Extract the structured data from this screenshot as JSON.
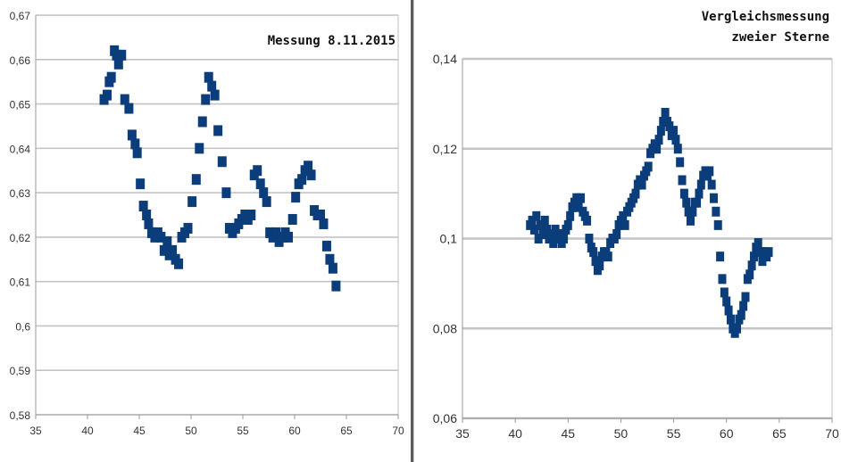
{
  "chart_data": [
    {
      "type": "scatter",
      "title": "Messung 8.11.2015",
      "xlim": [
        35,
        70
      ],
      "ylim": [
        0.58,
        0.67
      ],
      "x_ticks": [
        "35",
        "40",
        "45",
        "50",
        "55",
        "60",
        "65",
        "70"
      ],
      "y_ticks": [
        "0,58",
        "0,59",
        "0,6",
        "0,61",
        "0,62",
        "0,63",
        "0,64",
        "0,65",
        "0,66",
        "0,67"
      ],
      "grid": "horizontal",
      "color": "#0b3d7a",
      "series": [
        {
          "points": [
            [
              41.6,
              0.651
            ],
            [
              41.9,
              0.652
            ],
            [
              42.1,
              0.655
            ],
            [
              42.3,
              0.656
            ],
            [
              42.6,
              0.662
            ],
            [
              42.8,
              0.661
            ],
            [
              43.0,
              0.659
            ],
            [
              43.3,
              0.661
            ],
            [
              43.6,
              0.651
            ],
            [
              44.0,
              0.649
            ],
            [
              44.3,
              0.643
            ],
            [
              44.6,
              0.641
            ],
            [
              44.8,
              0.639
            ],
            [
              45.1,
              0.632
            ],
            [
              45.4,
              0.627
            ],
            [
              45.7,
              0.625
            ],
            [
              45.9,
              0.623
            ],
            [
              46.2,
              0.621
            ],
            [
              46.5,
              0.62
            ],
            [
              46.8,
              0.621
            ],
            [
              47.1,
              0.62
            ],
            [
              47.4,
              0.617
            ],
            [
              47.7,
              0.619
            ],
            [
              47.9,
              0.616
            ],
            [
              48.2,
              0.617
            ],
            [
              48.5,
              0.615
            ],
            [
              48.8,
              0.614
            ],
            [
              49.1,
              0.62
            ],
            [
              49.4,
              0.621
            ],
            [
              49.7,
              0.622
            ],
            [
              50.1,
              0.628
            ],
            [
              50.5,
              0.633
            ],
            [
              50.8,
              0.64
            ],
            [
              51.1,
              0.646
            ],
            [
              51.4,
              0.651
            ],
            [
              51.7,
              0.656
            ],
            [
              52.0,
              0.654
            ],
            [
              52.3,
              0.652
            ],
            [
              52.6,
              0.644
            ],
            [
              53.0,
              0.637
            ],
            [
              53.4,
              0.63
            ],
            [
              53.7,
              0.622
            ],
            [
              54.0,
              0.621
            ],
            [
              54.3,
              0.622
            ],
            [
              54.6,
              0.623
            ],
            [
              54.9,
              0.624
            ],
            [
              55.2,
              0.625
            ],
            [
              55.5,
              0.624
            ],
            [
              55.8,
              0.625
            ],
            [
              56.1,
              0.634
            ],
            [
              56.4,
              0.635
            ],
            [
              56.7,
              0.632
            ],
            [
              57.0,
              0.63
            ],
            [
              57.3,
              0.628
            ],
            [
              57.6,
              0.621
            ],
            [
              57.9,
              0.62
            ],
            [
              58.2,
              0.621
            ],
            [
              58.5,
              0.619
            ],
            [
              58.8,
              0.62
            ],
            [
              59.1,
              0.621
            ],
            [
              59.4,
              0.62
            ],
            [
              59.8,
              0.624
            ],
            [
              60.1,
              0.629
            ],
            [
              60.4,
              0.632
            ],
            [
              60.7,
              0.633
            ],
            [
              61.0,
              0.635
            ],
            [
              61.3,
              0.636
            ],
            [
              61.6,
              0.634
            ],
            [
              61.9,
              0.626
            ],
            [
              62.2,
              0.625
            ],
            [
              62.5,
              0.625
            ],
            [
              62.8,
              0.623
            ],
            [
              63.1,
              0.618
            ],
            [
              63.4,
              0.615
            ],
            [
              63.7,
              0.613
            ],
            [
              64.0,
              0.609
            ]
          ]
        }
      ]
    },
    {
      "type": "scatter",
      "title": "Vergleichsmessung\nzweier Sterne",
      "xlim": [
        35,
        70
      ],
      "ylim": [
        0.06,
        0.14
      ],
      "x_ticks": [
        "35",
        "40",
        "45",
        "50",
        "55",
        "60",
        "65",
        "70"
      ],
      "y_ticks": [
        "0,06",
        "0,08",
        "0,1",
        "0,12",
        "0,14"
      ],
      "grid": "horizontal",
      "color": "#0b3d7a",
      "series": [
        {
          "points": [
            [
              41.4,
              0.103
            ],
            [
              41.6,
              0.104
            ],
            [
              41.8,
              0.102
            ],
            [
              42.0,
              0.105
            ],
            [
              42.2,
              0.1
            ],
            [
              42.4,
              0.103
            ],
            [
              42.6,
              0.101
            ],
            [
              42.8,
              0.104
            ],
            [
              43.0,
              0.102
            ],
            [
              43.2,
              0.1
            ],
            [
              43.4,
              0.101
            ],
            [
              43.6,
              0.099
            ],
            [
              43.8,
              0.102
            ],
            [
              44.0,
              0.1
            ],
            [
              44.2,
              0.101
            ],
            [
              44.4,
              0.099
            ],
            [
              44.6,
              0.1
            ],
            [
              44.8,
              0.102
            ],
            [
              45.0,
              0.103
            ],
            [
              45.2,
              0.105
            ],
            [
              45.4,
              0.107
            ],
            [
              45.6,
              0.108
            ],
            [
              45.8,
              0.109
            ],
            [
              46.0,
              0.107
            ],
            [
              46.2,
              0.109
            ],
            [
              46.4,
              0.106
            ],
            [
              46.6,
              0.105
            ],
            [
              46.8,
              0.104
            ],
            [
              47.0,
              0.1
            ],
            [
              47.2,
              0.098
            ],
            [
              47.4,
              0.097
            ],
            [
              47.6,
              0.095
            ],
            [
              47.8,
              0.093
            ],
            [
              48.0,
              0.094
            ],
            [
              48.2,
              0.096
            ],
            [
              48.4,
              0.097
            ],
            [
              48.6,
              0.097
            ],
            [
              48.8,
              0.096
            ],
            [
              49.0,
              0.099
            ],
            [
              49.2,
              0.1
            ],
            [
              49.4,
              0.1
            ],
            [
              49.6,
              0.101
            ],
            [
              49.8,
              0.103
            ],
            [
              50.0,
              0.104
            ],
            [
              50.2,
              0.105
            ],
            [
              50.4,
              0.103
            ],
            [
              50.6,
              0.106
            ],
            [
              50.8,
              0.107
            ],
            [
              51.0,
              0.108
            ],
            [
              51.2,
              0.109
            ],
            [
              51.4,
              0.11
            ],
            [
              51.6,
              0.112
            ],
            [
              51.8,
              0.113
            ],
            [
              52.0,
              0.112
            ],
            [
              52.2,
              0.114
            ],
            [
              52.4,
              0.115
            ],
            [
              52.6,
              0.116
            ],
            [
              52.8,
              0.119
            ],
            [
              53.0,
              0.12
            ],
            [
              53.2,
              0.121
            ],
            [
              53.4,
              0.12
            ],
            [
              53.6,
              0.122
            ],
            [
              53.8,
              0.124
            ],
            [
              54.0,
              0.126
            ],
            [
              54.2,
              0.128
            ],
            [
              54.4,
              0.126
            ],
            [
              54.6,
              0.125
            ],
            [
              54.8,
              0.123
            ],
            [
              55.0,
              0.124
            ],
            [
              55.2,
              0.122
            ],
            [
              55.4,
              0.12
            ],
            [
              55.6,
              0.117
            ],
            [
              55.8,
              0.113
            ],
            [
              56.0,
              0.11
            ],
            [
              56.2,
              0.108
            ],
            [
              56.4,
              0.106
            ],
            [
              56.6,
              0.104
            ],
            [
              56.8,
              0.106
            ],
            [
              57.0,
              0.108
            ],
            [
              57.2,
              0.108
            ],
            [
              57.4,
              0.11
            ],
            [
              57.6,
              0.112
            ],
            [
              57.8,
              0.114
            ],
            [
              58.0,
              0.115
            ],
            [
              58.2,
              0.114
            ],
            [
              58.4,
              0.115
            ],
            [
              58.6,
              0.112
            ],
            [
              58.8,
              0.109
            ],
            [
              59.0,
              0.106
            ],
            [
              59.2,
              0.103
            ],
            [
              59.4,
              0.096
            ],
            [
              59.6,
              0.091
            ],
            [
              59.8,
              0.088
            ],
            [
              60.0,
              0.086
            ],
            [
              60.2,
              0.084
            ],
            [
              60.4,
              0.082
            ],
            [
              60.6,
              0.08
            ],
            [
              60.8,
              0.079
            ],
            [
              61.0,
              0.08
            ],
            [
              61.2,
              0.082
            ],
            [
              61.4,
              0.083
            ],
            [
              61.6,
              0.085
            ],
            [
              61.8,
              0.087
            ],
            [
              62.0,
              0.091
            ],
            [
              62.2,
              0.092
            ],
            [
              62.4,
              0.094
            ],
            [
              62.6,
              0.096
            ],
            [
              62.8,
              0.098
            ],
            [
              63.0,
              0.099
            ],
            [
              63.2,
              0.097
            ],
            [
              63.4,
              0.095
            ],
            [
              63.6,
              0.097
            ],
            [
              63.8,
              0.096
            ],
            [
              64.0,
              0.097
            ]
          ]
        }
      ]
    }
  ]
}
